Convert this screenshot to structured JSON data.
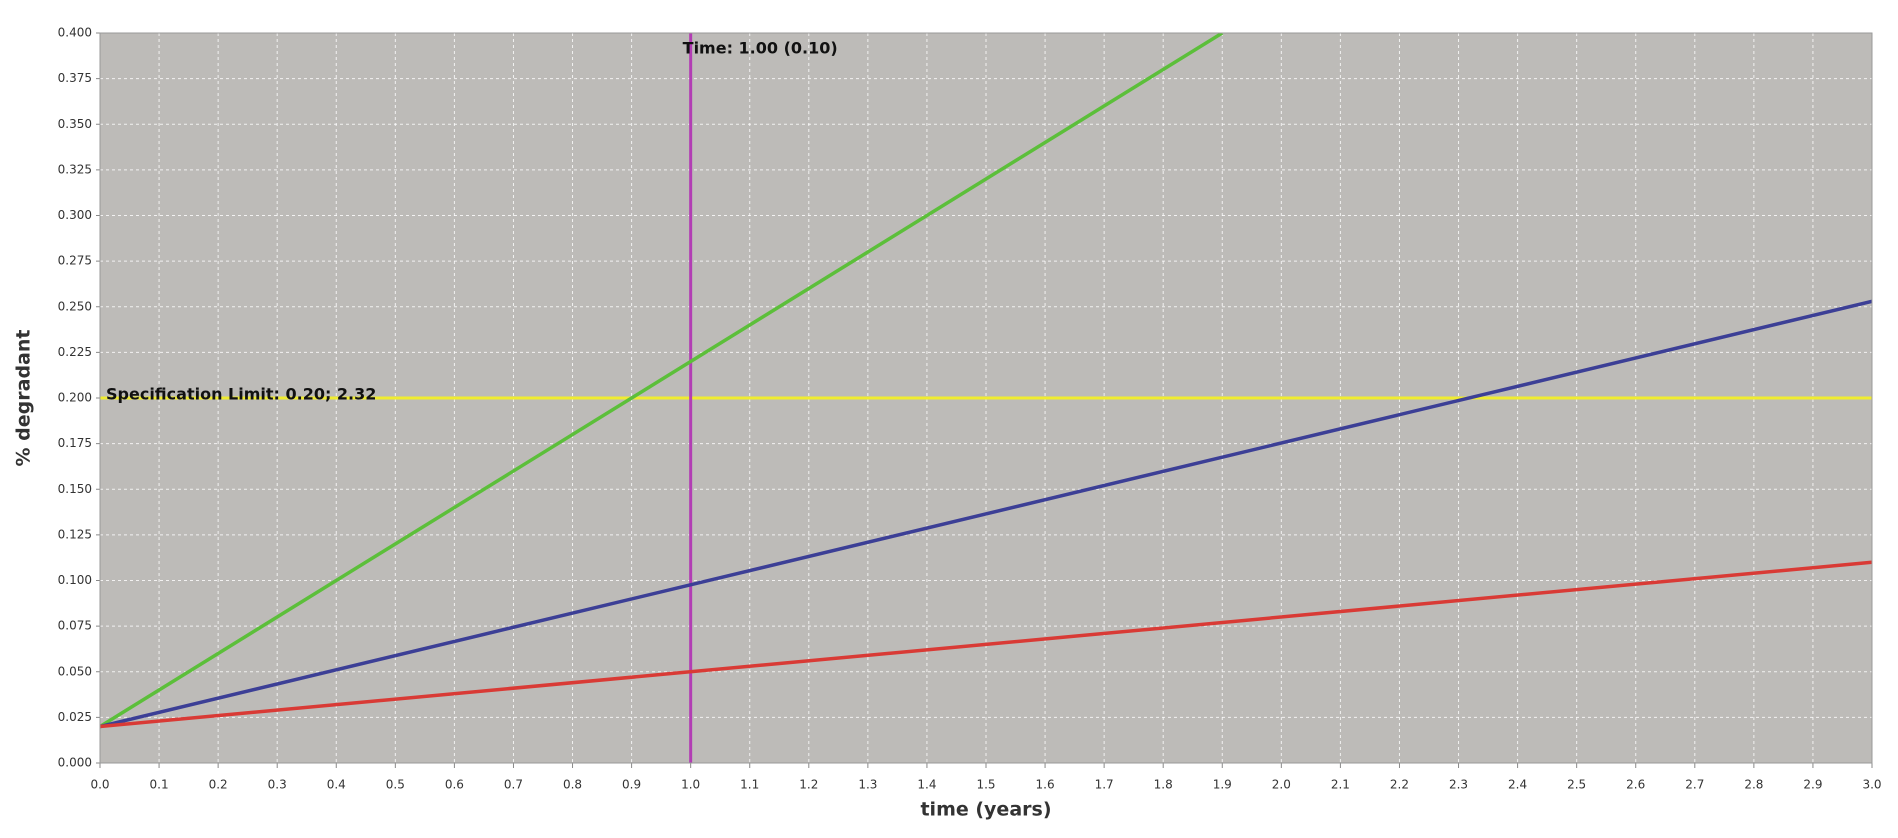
{
  "chart_data": {
    "type": "line",
    "xlabel": "time (years)",
    "ylabel": "% degradant",
    "xlim": [
      0,
      3
    ],
    "ylim": [
      0,
      0.4
    ],
    "xticks": [
      {
        "value": 0,
        "label": "0.0"
      },
      {
        "value": 0.1,
        "label": "0.1"
      },
      {
        "value": 0.2,
        "label": "0.2"
      },
      {
        "value": 0.3,
        "label": "0.3"
      },
      {
        "value": 0.4,
        "label": "0.4"
      },
      {
        "value": 0.5,
        "label": "0.5"
      },
      {
        "value": 0.6,
        "label": "0.6"
      },
      {
        "value": 0.7,
        "label": "0.7"
      },
      {
        "value": 0.8,
        "label": "0.8"
      },
      {
        "value": 0.9,
        "label": "0.9"
      },
      {
        "value": 1,
        "label": "1.0"
      },
      {
        "value": 1.1,
        "label": "1.1"
      },
      {
        "value": 1.2,
        "label": "1.2"
      },
      {
        "value": 1.3,
        "label": "1.3"
      },
      {
        "value": 1.4,
        "label": "1.4"
      },
      {
        "value": 1.5,
        "label": "1.5"
      },
      {
        "value": 1.6,
        "label": "1.6"
      },
      {
        "value": 1.7,
        "label": "1.7"
      },
      {
        "value": 1.8,
        "label": "1.8"
      },
      {
        "value": 1.9,
        "label": "1.9"
      },
      {
        "value": 2,
        "label": "2.0"
      },
      {
        "value": 2.1,
        "label": "2.1"
      },
      {
        "value": 2.2,
        "label": "2.2"
      },
      {
        "value": 2.3,
        "label": "2.3"
      },
      {
        "value": 2.4,
        "label": "2.4"
      },
      {
        "value": 2.5,
        "label": "2.5"
      },
      {
        "value": 2.6,
        "label": "2.6"
      },
      {
        "value": 2.7,
        "label": "2.7"
      },
      {
        "value": 2.8,
        "label": "2.8"
      },
      {
        "value": 2.9,
        "label": "2.9"
      },
      {
        "value": 3,
        "label": "3.0"
      }
    ],
    "yticks": [
      {
        "value": 0,
        "label": "0.000"
      },
      {
        "value": 0.025,
        "label": "0.025"
      },
      {
        "value": 0.05,
        "label": "0.050"
      },
      {
        "value": 0.075,
        "label": "0.075"
      },
      {
        "value": 0.1,
        "label": "0.100"
      },
      {
        "value": 0.125,
        "label": "0.125"
      },
      {
        "value": 0.15,
        "label": "0.150"
      },
      {
        "value": 0.175,
        "label": "0.175"
      },
      {
        "value": 0.2,
        "label": "0.200"
      },
      {
        "value": 0.225,
        "label": "0.225"
      },
      {
        "value": 0.25,
        "label": "0.250"
      },
      {
        "value": 0.275,
        "label": "0.275"
      },
      {
        "value": 0.3,
        "label": "0.300"
      },
      {
        "value": 0.325,
        "label": "0.325"
      },
      {
        "value": 0.35,
        "label": "0.350"
      },
      {
        "value": 0.375,
        "label": "0.375"
      },
      {
        "value": 0.4,
        "label": "0.400"
      }
    ],
    "grid": true,
    "series": [
      {
        "color": "#5cbf3a",
        "x": [
          0,
          1.9
        ],
        "values": [
          0.02,
          0.4
        ]
      },
      {
        "color": "#3c3f96",
        "x": [
          0,
          3
        ],
        "values": [
          0.02,
          0.253
        ]
      },
      {
        "color": "#d93a35",
        "x": [
          0,
          3
        ],
        "values": [
          0.02,
          0.11
        ]
      }
    ],
    "reference_lines": [
      {
        "axis": "y",
        "value": 0.2,
        "color": "#f0ec30",
        "label": "Specification Limit: 0.20; 2.32"
      },
      {
        "axis": "x",
        "value": 1,
        "color": "#b23db4",
        "label": "Time: 1.00 (0.10)"
      }
    ]
  }
}
